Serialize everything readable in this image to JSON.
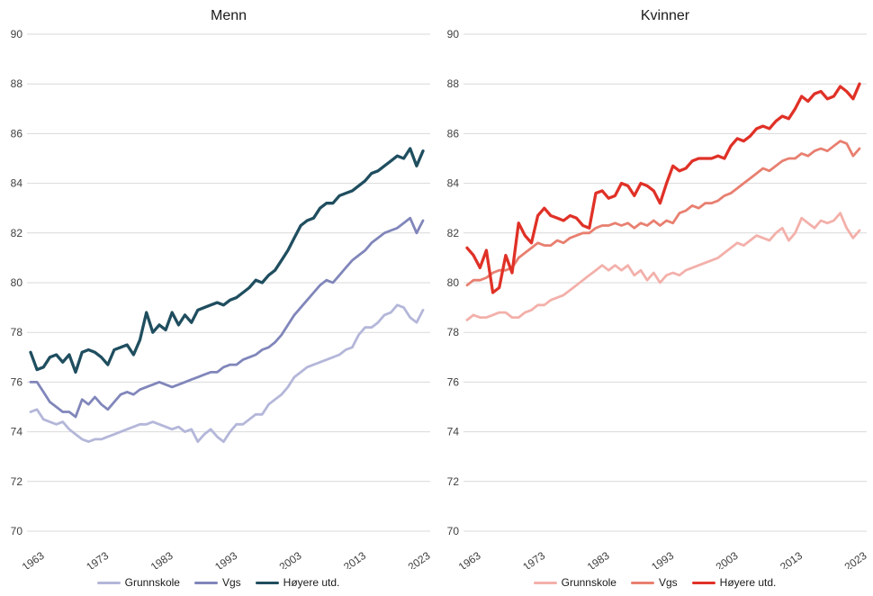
{
  "figure": {
    "background": "#ffffff",
    "gridline_color": "#d9d9d9",
    "axis_text_color": "#404040"
  },
  "chart_data": [
    {
      "type": "line",
      "title": "Menn",
      "ylim": [
        70,
        90
      ],
      "ytick_step": 2,
      "grid": "horizontal",
      "legend_position": "bottom",
      "x_label_ticks": [
        1963,
        1973,
        1983,
        1993,
        2003,
        2013,
        2023
      ],
      "years": [
        1963,
        1964,
        1965,
        1966,
        1967,
        1968,
        1969,
        1970,
        1971,
        1972,
        1973,
        1974,
        1975,
        1976,
        1977,
        1978,
        1979,
        1980,
        1981,
        1982,
        1983,
        1984,
        1985,
        1986,
        1987,
        1988,
        1989,
        1990,
        1991,
        1992,
        1993,
        1994,
        1995,
        1996,
        1997,
        1998,
        1999,
        2000,
        2001,
        2002,
        2003,
        2004,
        2005,
        2006,
        2007,
        2008,
        2009,
        2010,
        2011,
        2012,
        2013,
        2014,
        2015,
        2016,
        2017,
        2018,
        2019,
        2020,
        2021,
        2022,
        2023,
        2024
      ],
      "series": [
        {
          "name": "Grunnskole",
          "color": "#b4b7d9",
          "values": [
            74.8,
            74.9,
            74.5,
            74.4,
            74.3,
            74.4,
            74.1,
            73.9,
            73.7,
            73.6,
            73.7,
            73.7,
            73.8,
            73.9,
            74.0,
            74.1,
            74.2,
            74.3,
            74.3,
            74.4,
            74.3,
            74.2,
            74.1,
            74.2,
            74.0,
            74.1,
            73.6,
            73.9,
            74.1,
            73.8,
            73.6,
            74.0,
            74.3,
            74.3,
            74.5,
            74.7,
            74.7,
            75.1,
            75.3,
            75.5,
            75.8,
            76.2,
            76.4,
            76.6,
            76.7,
            76.8,
            76.9,
            77.0,
            77.1,
            77.3,
            77.4,
            77.9,
            78.2,
            78.2,
            78.4,
            78.7,
            78.8,
            79.1,
            79.0,
            78.6,
            78.4,
            78.9
          ]
        },
        {
          "name": "Vgs",
          "color": "#8086ba",
          "values": [
            76.0,
            76.0,
            75.6,
            75.2,
            75.0,
            74.8,
            74.8,
            74.6,
            75.3,
            75.1,
            75.4,
            75.1,
            74.9,
            75.2,
            75.5,
            75.6,
            75.5,
            75.7,
            75.8,
            75.9,
            76.0,
            75.9,
            75.8,
            75.9,
            76.0,
            76.1,
            76.2,
            76.3,
            76.4,
            76.4,
            76.6,
            76.7,
            76.7,
            76.9,
            77.0,
            77.1,
            77.3,
            77.4,
            77.6,
            77.9,
            78.3,
            78.7,
            79.0,
            79.3,
            79.6,
            79.9,
            80.1,
            80.0,
            80.3,
            80.6,
            80.9,
            81.1,
            81.3,
            81.6,
            81.8,
            82.0,
            82.1,
            82.2,
            82.4,
            82.6,
            82.0,
            82.5
          ]
        },
        {
          "name": "Høyere utd.",
          "color": "#1f4e5f",
          "values": [
            77.2,
            76.5,
            76.6,
            77.0,
            77.1,
            76.8,
            77.1,
            76.4,
            77.2,
            77.3,
            77.2,
            77.0,
            76.7,
            77.3,
            77.4,
            77.5,
            77.1,
            77.7,
            78.8,
            78.0,
            78.3,
            78.1,
            78.8,
            78.3,
            78.7,
            78.4,
            78.9,
            79.0,
            79.1,
            79.2,
            79.1,
            79.3,
            79.4,
            79.6,
            79.8,
            80.1,
            80.0,
            80.3,
            80.5,
            80.9,
            81.3,
            81.8,
            82.3,
            82.5,
            82.6,
            83.0,
            83.2,
            83.2,
            83.5,
            83.6,
            83.7,
            83.9,
            84.1,
            84.4,
            84.5,
            84.7,
            84.9,
            85.1,
            85.0,
            85.4,
            84.7,
            85.3
          ]
        }
      ]
    },
    {
      "type": "line",
      "title": "Kvinner",
      "ylim": [
        70,
        90
      ],
      "ytick_step": 2,
      "grid": "horizontal",
      "legend_position": "bottom",
      "x_label_ticks": [
        1963,
        1973,
        1983,
        1993,
        2003,
        2013,
        2023
      ],
      "years": [
        1963,
        1964,
        1965,
        1966,
        1967,
        1968,
        1969,
        1970,
        1971,
        1972,
        1973,
        1974,
        1975,
        1976,
        1977,
        1978,
        1979,
        1980,
        1981,
        1982,
        1983,
        1984,
        1985,
        1986,
        1987,
        1988,
        1989,
        1990,
        1991,
        1992,
        1993,
        1994,
        1995,
        1996,
        1997,
        1998,
        1999,
        2000,
        2001,
        2002,
        2003,
        2004,
        2005,
        2006,
        2007,
        2008,
        2009,
        2010,
        2011,
        2012,
        2013,
        2014,
        2015,
        2016,
        2017,
        2018,
        2019,
        2020,
        2021,
        2022,
        2023,
        2024
      ],
      "series": [
        {
          "name": "Grunnskole",
          "color": "#f3b0aa",
          "values": [
            78.5,
            78.7,
            78.6,
            78.6,
            78.7,
            78.8,
            78.8,
            78.6,
            78.6,
            78.8,
            78.9,
            79.1,
            79.1,
            79.3,
            79.4,
            79.5,
            79.7,
            79.9,
            80.1,
            80.3,
            80.5,
            80.7,
            80.5,
            80.7,
            80.5,
            80.7,
            80.3,
            80.5,
            80.1,
            80.4,
            80.0,
            80.3,
            80.4,
            80.3,
            80.5,
            80.6,
            80.7,
            80.8,
            80.9,
            81.0,
            81.2,
            81.4,
            81.6,
            81.5,
            81.7,
            81.9,
            81.8,
            81.7,
            82.0,
            82.2,
            81.7,
            82.0,
            82.6,
            82.4,
            82.2,
            82.5,
            82.4,
            82.5,
            82.8,
            82.2,
            81.8,
            82.1
          ]
        },
        {
          "name": "Vgs",
          "color": "#e87f70",
          "values": [
            79.9,
            80.1,
            80.1,
            80.2,
            80.4,
            80.5,
            80.5,
            80.6,
            81.0,
            81.2,
            81.4,
            81.6,
            81.5,
            81.5,
            81.7,
            81.6,
            81.8,
            81.9,
            82.0,
            82.0,
            82.2,
            82.3,
            82.3,
            82.4,
            82.3,
            82.4,
            82.2,
            82.4,
            82.3,
            82.5,
            82.3,
            82.5,
            82.4,
            82.8,
            82.9,
            83.1,
            83.0,
            83.2,
            83.2,
            83.3,
            83.5,
            83.6,
            83.8,
            84.0,
            84.2,
            84.4,
            84.6,
            84.5,
            84.7,
            84.9,
            85.0,
            85.0,
            85.2,
            85.1,
            85.3,
            85.4,
            85.3,
            85.5,
            85.7,
            85.6,
            85.1,
            85.4
          ]
        },
        {
          "name": "Høyere utd.",
          "color": "#e03127",
          "values": [
            81.4,
            81.1,
            80.6,
            81.3,
            79.6,
            79.8,
            81.1,
            80.4,
            82.4,
            81.9,
            81.6,
            82.7,
            83.0,
            82.7,
            82.6,
            82.5,
            82.7,
            82.6,
            82.3,
            82.2,
            83.6,
            83.7,
            83.4,
            83.5,
            84.0,
            83.9,
            83.5,
            84.0,
            83.9,
            83.7,
            83.2,
            84.0,
            84.7,
            84.5,
            84.6,
            84.9,
            85.0,
            85.0,
            85.0,
            85.1,
            85.0,
            85.5,
            85.8,
            85.7,
            85.9,
            86.2,
            86.3,
            86.2,
            86.5,
            86.7,
            86.6,
            87.0,
            87.5,
            87.3,
            87.6,
            87.7,
            87.4,
            87.5,
            87.9,
            87.7,
            87.4,
            88.0
          ]
        }
      ]
    }
  ]
}
